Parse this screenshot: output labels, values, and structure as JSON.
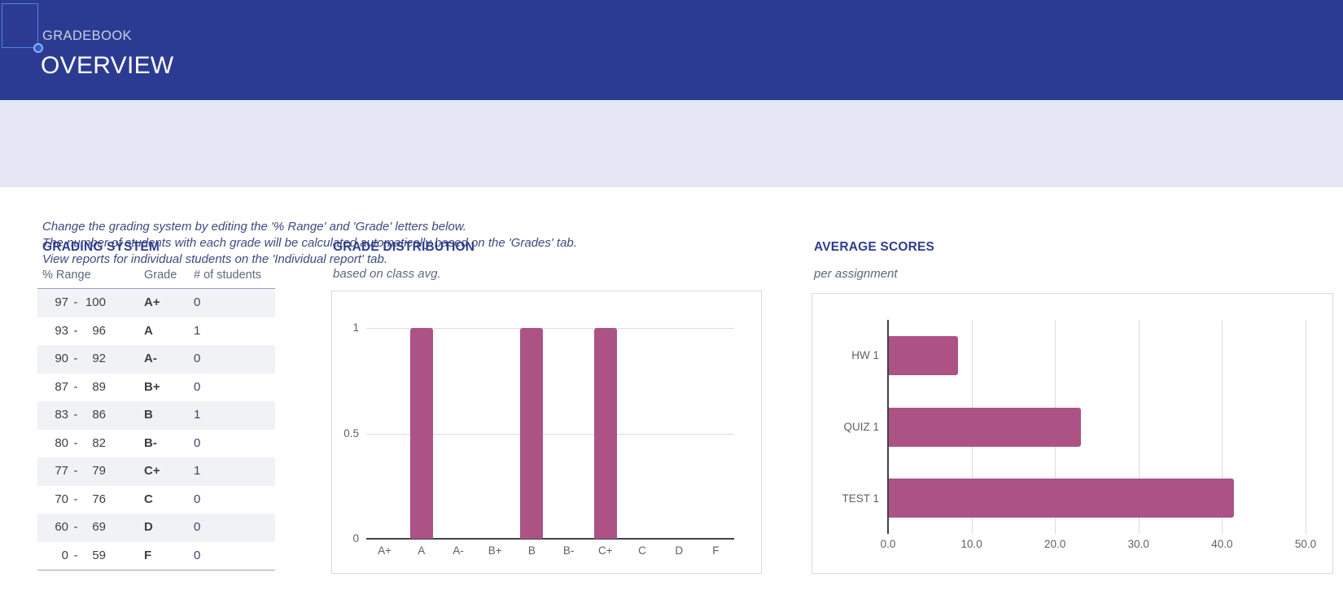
{
  "theme": {
    "header-bg": "#2c3b92",
    "notice-bg": "#e4e6f3",
    "title-blue": "#2f3d8f",
    "muted-blue": "#5c6880",
    "notice-text": "#3e4b7e",
    "bar-color": "#ad5285",
    "grid-color": "#dadce0",
    "axis-color": "#424242",
    "tick-color": "#616161",
    "row-shade": "#f1f2f5",
    "table-line": "#9aa2b8",
    "selection-blue": "#4e82e2"
  },
  "header": {
    "kicker": "GRADEBOOK",
    "title": "OVERVIEW"
  },
  "notice": {
    "lines": [
      "Change the grading system by editing the '% Range' and 'Grade' letters below.",
      "The number of students with each grade will be calculated automatically based on the 'Grades' tab.",
      "View reports for individual students on the 'Individual report' tab."
    ]
  },
  "grading_system": {
    "title": "GRADING SYSTEM",
    "columns": {
      "range": "% Range",
      "grade": "Grade",
      "count": "# of students"
    },
    "range_separator": "-",
    "rows": [
      {
        "from": "97",
        "to": "100",
        "grade": "A+",
        "count": "0"
      },
      {
        "from": "93",
        "to": "96",
        "grade": "A",
        "count": "1"
      },
      {
        "from": "90",
        "to": "92",
        "grade": "A-",
        "count": "0"
      },
      {
        "from": "87",
        "to": "89",
        "grade": "B+",
        "count": "0"
      },
      {
        "from": "83",
        "to": "86",
        "grade": "B",
        "count": "1"
      },
      {
        "from": "80",
        "to": "82",
        "grade": "B-",
        "count": "0"
      },
      {
        "from": "77",
        "to": "79",
        "grade": "C+",
        "count": "1"
      },
      {
        "from": "70",
        "to": "76",
        "grade": "C",
        "count": "0"
      },
      {
        "from": "60",
        "to": "69",
        "grade": "D",
        "count": "0"
      },
      {
        "from": "0",
        "to": "59",
        "grade": "F",
        "count": "0"
      }
    ]
  },
  "chart_data": [
    {
      "type": "bar",
      "orientation": "vertical",
      "title": "GRADE DISTRIBUTION",
      "subtitle": "based on class avg.",
      "categories": [
        "A+",
        "A",
        "A-",
        "B+",
        "B",
        "B-",
        "C+",
        "C",
        "D",
        "F"
      ],
      "values": [
        0,
        1,
        0,
        0,
        1,
        0,
        1,
        0,
        0,
        0
      ],
      "ylim": [
        0,
        1
      ],
      "yticks": [
        0,
        0.5,
        1
      ],
      "grid": true,
      "legend": false,
      "bar_color": "#ad5285"
    },
    {
      "type": "bar",
      "orientation": "horizontal",
      "title": "AVERAGE SCORES",
      "subtitle": "per assignment",
      "categories": [
        "HW 1",
        "QUIZ 1",
        "TEST 1"
      ],
      "values": [
        8.3,
        23,
        41.3
      ],
      "xlim": [
        0,
        50
      ],
      "xtick_labels": [
        "0.0",
        "10.0",
        "20.0",
        "30.0",
        "40.0",
        "50.0"
      ],
      "grid": true,
      "legend": false,
      "bar_color": "#ad5285"
    }
  ]
}
